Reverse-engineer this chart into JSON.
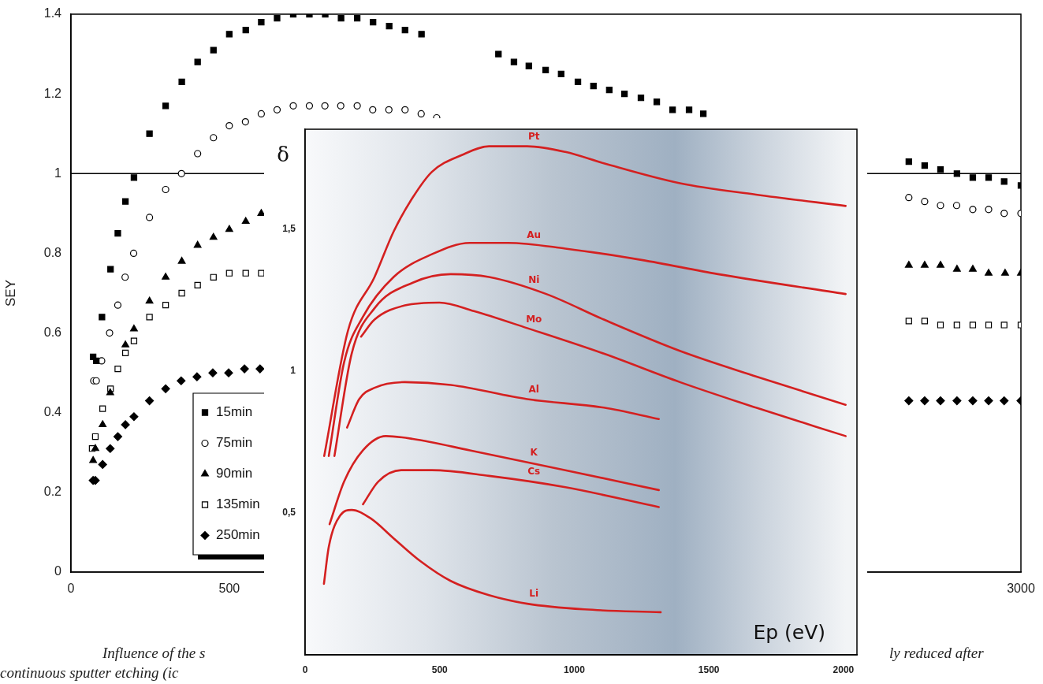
{
  "chart_data": [
    {
      "type": "scatter",
      "ylabel": "SEY",
      "xlim": [
        0,
        3000
      ],
      "ylim": [
        0,
        1.4
      ],
      "xticks": [
        0,
        500,
        3000
      ],
      "yticks": [
        0,
        0.2,
        0.4,
        0.6,
        0.8,
        1,
        1.2,
        1.4
      ],
      "grid": false,
      "legend": "bottom left",
      "ref_lines": [
        {
          "axis": "y",
          "value": 1,
          "color": "#000000"
        }
      ],
      "annotations": [
        "Influence of the s",
        "ly reduced after",
        "continuous sputter etching (ic"
      ],
      "series": [
        {
          "name": "15min",
          "color": "#000000",
          "marker": "square",
          "x": [
            70,
            80,
            98,
            125,
            148,
            172,
            199,
            248,
            299,
            350,
            400,
            450,
            500,
            552,
            601,
            651,
            702,
            753,
            803,
            853,
            904,
            954,
            1005,
            1055,
            1107,
            1350,
            1399,
            1446,
            1499,
            1548,
            1601,
            1650,
            1700,
            1748,
            1800,
            1850,
            1900,
            1952,
            1997,
            2646,
            2696,
            2746,
            2798,
            2848,
            2898,
            2947,
            3000
          ],
          "values": [
            0.54,
            0.53,
            0.64,
            0.76,
            0.85,
            0.93,
            0.99,
            1.1,
            1.17,
            1.23,
            1.28,
            1.31,
            1.35,
            1.36,
            1.38,
            1.39,
            1.4,
            1.4,
            1.4,
            1.39,
            1.39,
            1.38,
            1.37,
            1.36,
            1.35,
            1.3,
            1.28,
            1.27,
            1.26,
            1.25,
            1.23,
            1.22,
            1.21,
            1.2,
            1.19,
            1.18,
            1.16,
            1.16,
            1.15,
            1.03,
            1.02,
            1.01,
            1.0,
            0.99,
            0.99,
            0.98,
            0.97
          ]
        },
        {
          "name": "75min",
          "color": "#000000",
          "marker": "circle-open",
          "x": [
            72,
            80,
            97,
            122,
            148,
            171,
            198,
            248,
            299,
            349,
            400,
            450,
            500,
            551,
            601,
            651,
            702,
            753,
            802,
            852,
            904,
            953,
            1004,
            1055,
            1106,
            1155,
            2646,
            2696,
            2746,
            2797,
            2848,
            2898,
            2947,
            3000
          ],
          "values": [
            0.48,
            0.48,
            0.53,
            0.6,
            0.67,
            0.74,
            0.8,
            0.89,
            0.96,
            1.0,
            1.05,
            1.09,
            1.12,
            1.13,
            1.15,
            1.16,
            1.17,
            1.17,
            1.17,
            1.17,
            1.17,
            1.16,
            1.16,
            1.16,
            1.15,
            1.14,
            0.94,
            0.93,
            0.92,
            0.92,
            0.91,
            0.91,
            0.9,
            0.9
          ]
        },
        {
          "name": "90min",
          "color": "#000000",
          "marker": "triangle",
          "x": [
            70,
            77,
            100,
            124,
            172,
            199,
            248,
            299,
            350,
            400,
            450,
            500,
            552,
            601,
            2646,
            2696,
            2746,
            2798,
            2848,
            2898,
            2950,
            3000
          ],
          "values": [
            0.28,
            0.31,
            0.37,
            0.45,
            0.57,
            0.61,
            0.68,
            0.74,
            0.78,
            0.82,
            0.84,
            0.86,
            0.88,
            0.9,
            0.77,
            0.77,
            0.77,
            0.76,
            0.76,
            0.75,
            0.75,
            0.75
          ]
        },
        {
          "name": "135min",
          "color": "#000000",
          "marker": "square-open",
          "x": [
            67,
            77,
            100,
            125,
            148,
            172,
            199,
            248,
            299,
            350,
            400,
            450,
            500,
            552,
            601,
            2646,
            2696,
            2746,
            2798,
            2848,
            2898,
            2947,
            3000
          ],
          "values": [
            0.31,
            0.34,
            0.41,
            0.46,
            0.51,
            0.55,
            0.58,
            0.64,
            0.67,
            0.7,
            0.72,
            0.74,
            0.75,
            0.75,
            0.75,
            0.63,
            0.63,
            0.62,
            0.62,
            0.62,
            0.62,
            0.62,
            0.62
          ]
        },
        {
          "name": "250min",
          "color": "#000000",
          "marker": "diamond",
          "x": [
            70,
            77,
            100,
            124,
            148,
            172,
            199,
            248,
            299,
            348,
            398,
            448,
            498,
            548,
            597,
            2646,
            2696,
            2746,
            2798,
            2848,
            2898,
            2947,
            3000
          ],
          "values": [
            0.23,
            0.23,
            0.27,
            0.31,
            0.34,
            0.37,
            0.39,
            0.43,
            0.46,
            0.48,
            0.49,
            0.5,
            0.5,
            0.51,
            0.51,
            0.43,
            0.43,
            0.43,
            0.43,
            0.43,
            0.43,
            0.43,
            0.43
          ]
        }
      ]
    },
    {
      "type": "line",
      "xlabel": "Ep (eV)",
      "ylabel": "δ",
      "xlim": [
        0,
        2050
      ],
      "ylim": [
        0,
        1.85
      ],
      "xticks": [
        0,
        500,
        1000,
        1500,
        2000
      ],
      "yticks": [
        {
          "value": 0.5,
          "label": "0,5"
        },
        1,
        {
          "value": 1.5,
          "label": "1,5"
        }
      ],
      "grid": false,
      "legend": false,
      "marker": "none",
      "line_style": "solid",
      "series": [
        {
          "name": "Pt",
          "color": "#d42020",
          "x": [
            71,
            159,
            258,
            329,
            400,
            471,
            584,
            683,
            825,
            967,
            1110,
            1392,
            1675,
            2008
          ],
          "values": [
            0.7,
            1.14,
            1.33,
            1.49,
            1.61,
            1.7,
            1.76,
            1.79,
            1.79,
            1.77,
            1.73,
            1.66,
            1.62,
            1.58
          ]
        },
        {
          "name": "Au",
          "color": "#d42020",
          "x": [
            88,
            145,
            215,
            329,
            471,
            612,
            754,
            967,
            1250,
            1534,
            2008
          ],
          "values": [
            0.7,
            1.03,
            1.19,
            1.33,
            1.41,
            1.45,
            1.45,
            1.43,
            1.39,
            1.34,
            1.27
          ]
        },
        {
          "name": "Ni",
          "color": "#d42020",
          "x": [
            109,
            173,
            258,
            400,
            541,
            683,
            896,
            1110,
            1392,
            1675,
            2008
          ],
          "values": [
            0.7,
            1.06,
            1.22,
            1.31,
            1.34,
            1.33,
            1.27,
            1.18,
            1.07,
            0.98,
            0.88
          ]
        },
        {
          "name": "Mo",
          "color": "#d42020",
          "x": [
            208,
            258,
            371,
            499,
            627,
            825,
            1110,
            1392,
            1675,
            2008
          ],
          "values": [
            1.12,
            1.18,
            1.23,
            1.24,
            1.21,
            1.15,
            1.06,
            0.96,
            0.87,
            0.77
          ]
        },
        {
          "name": "Al",
          "color": "#d42020",
          "x": [
            156,
            201,
            258,
            371,
            541,
            825,
            1110,
            1314
          ],
          "values": [
            0.8,
            0.9,
            0.94,
            0.96,
            0.95,
            0.9,
            0.87,
            0.83
          ]
        },
        {
          "name": "K",
          "color": "#d42020",
          "x": [
            91,
            145,
            215,
            300,
            400,
            612,
            967,
            1314
          ],
          "values": [
            0.46,
            0.61,
            0.72,
            0.77,
            0.76,
            0.72,
            0.65,
            0.58
          ]
        },
        {
          "name": "Cs",
          "color": "#d42020",
          "x": [
            215,
            272,
            357,
            471,
            683,
            967,
            1314
          ],
          "values": [
            0.53,
            0.61,
            0.65,
            0.65,
            0.63,
            0.59,
            0.52
          ]
        },
        {
          "name": "Li",
          "color": "#d42020",
          "x": [
            70,
            88,
            130,
            173,
            244,
            329,
            428,
            541,
            683,
            825,
            1038,
            1321
          ],
          "values": [
            0.25,
            0.38,
            0.49,
            0.51,
            0.48,
            0.41,
            0.33,
            0.26,
            0.21,
            0.18,
            0.16,
            0.15
          ]
        }
      ]
    }
  ]
}
